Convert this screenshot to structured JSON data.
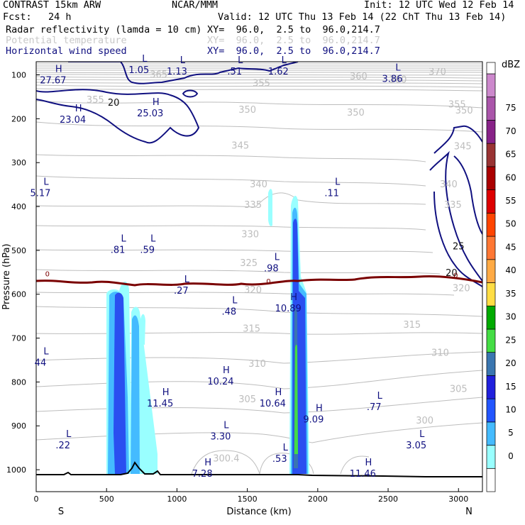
{
  "header": {
    "model": "CONTRAST 15km ARW",
    "center": "NCAR/MMM",
    "init": "Init: 12 UTC Wed 12 Feb 14",
    "fcst_label": "Fcst:",
    "fcst_value": "24 h",
    "valid": "Valid: 12 UTC Thu 13 Feb 14 (22 ChT Thu 13 Feb 14)",
    "fields": [
      {
        "name": "Radar reflectivity (lamda = 10 cm)",
        "xy": "XY=  96.0,  2.5 to  96.0,214.7"
      },
      {
        "name": "Potential temperature",
        "xy": "XY=  96.0,  2.5 to  96.0,214.7"
      },
      {
        "name": "Horizontal wind speed",
        "xy": "XY=  96.0,  2.5 to  96.0,214.7"
      }
    ]
  },
  "colors": {
    "reflectivity": [
      "#ffffff",
      "#99ffff",
      "#44bbff",
      "#2255ff",
      "#2020dd",
      "#3a76b0",
      "#44dd44",
      "#00aa00",
      "#ffdd44",
      "#ffaa44",
      "#ff7733",
      "#ff4400",
      "#dd0000",
      "#aa0000",
      "#993333",
      "#882288",
      "#aa55aa",
      "#cc88cc"
    ],
    "theta": "#bdbdbd",
    "wind": "#101080",
    "freezing": "#7a0000"
  },
  "chart_data": {
    "type": "contour",
    "xlabel": "Distance (km)",
    "ylabel": "Pressure (hPa)",
    "xlim": [
      0,
      3170
    ],
    "ylim": [
      1050,
      70
    ],
    "x_ticks": [
      "0",
      "500",
      "1000",
      "1500",
      "2000",
      "2500",
      "3000"
    ],
    "x_tick_values": [
      0,
      500,
      1000,
      1500,
      2000,
      2500,
      3000
    ],
    "y_ticks": [
      "100",
      "200",
      "300",
      "400",
      "500",
      "600",
      "700",
      "800",
      "900",
      "1000"
    ],
    "y_tick_values": [
      100,
      200,
      300,
      400,
      500,
      600,
      700,
      800,
      900,
      1000
    ],
    "x_end_labels": {
      "left": "S",
      "right": "N"
    },
    "colorbar": {
      "unit": "dBZ",
      "levels": [
        "0",
        "5",
        "10",
        "15",
        "20",
        "25",
        "30",
        "35",
        "40",
        "45",
        "50",
        "55",
        "60",
        "65",
        "70",
        "75"
      ]
    },
    "theta_labels": [
      {
        "text": "370",
        "x": 2850,
        "p": 92
      },
      {
        "text": "360",
        "x": 2290,
        "p": 102
      },
      {
        "text": "360",
        "x": 2570,
        "p": 110
      },
      {
        "text": "365",
        "x": 870,
        "p": 98
      },
      {
        "text": "355",
        "x": 1600,
        "p": 118
      },
      {
        "text": "355",
        "x": 420,
        "p": 156
      },
      {
        "text": "355",
        "x": 2990,
        "p": 166
      },
      {
        "text": "350",
        "x": 1500,
        "p": 178
      },
      {
        "text": "350",
        "x": 2270,
        "p": 185
      },
      {
        "text": "350",
        "x": 3040,
        "p": 180
      },
      {
        "text": "345",
        "x": 1450,
        "p": 260
      },
      {
        "text": "345",
        "x": 3030,
        "p": 262
      },
      {
        "text": "340",
        "x": 1580,
        "p": 348
      },
      {
        "text": "340",
        "x": 2930,
        "p": 348
      },
      {
        "text": "335",
        "x": 1540,
        "p": 395
      },
      {
        "text": "335",
        "x": 2960,
        "p": 395
      },
      {
        "text": "330",
        "x": 1520,
        "p": 462
      },
      {
        "text": "325",
        "x": 1510,
        "p": 528
      },
      {
        "text": "320",
        "x": 1540,
        "p": 589
      },
      {
        "text": "320",
        "x": 3020,
        "p": 585
      },
      {
        "text": "315",
        "x": 1530,
        "p": 677
      },
      {
        "text": "315",
        "x": 2670,
        "p": 668
      },
      {
        "text": "310",
        "x": 1570,
        "p": 757
      },
      {
        "text": "310",
        "x": 2870,
        "p": 732
      },
      {
        "text": "305",
        "x": 1500,
        "p": 838
      },
      {
        "text": "305",
        "x": 3000,
        "p": 815
      },
      {
        "text": "300",
        "x": 2760,
        "p": 887
      },
      {
        "text": "300.4",
        "x": 1350,
        "p": 973
      }
    ],
    "wind_labels": [
      {
        "text": "20",
        "x": 550,
        "p": 162
      },
      {
        "text": "25",
        "x": 3000,
        "p": 490
      },
      {
        "text": "20",
        "x": 2950,
        "p": 550
      }
    ],
    "freezing_labels": [
      {
        "text": "0",
        "x": 80,
        "p": 553
      },
      {
        "text": "0",
        "x": 1650,
        "p": 570
      },
      {
        "text": "0",
        "x": 2980,
        "p": 556
      }
    ],
    "extrema": [
      {
        "kind": "H",
        "value": "27.67",
        "x": 120,
        "p": 103
      },
      {
        "kind": "L",
        "value": "1.05",
        "x": 730,
        "p": 80
      },
      {
        "kind": "L",
        "value": "1.13",
        "x": 1000,
        "p": 83
      },
      {
        "kind": "L",
        "value": ".51",
        "x": 1410,
        "p": 83
      },
      {
        "kind": "L",
        "value": "1.62",
        "x": 1720,
        "p": 83
      },
      {
        "kind": "L",
        "value": "3.86",
        "x": 2530,
        "p": 100
      },
      {
        "kind": "H",
        "value": "25.03",
        "x": 810,
        "p": 178
      },
      {
        "kind": "H",
        "value": "23.04",
        "x": 260,
        "p": 193
      },
      {
        "kind": "L",
        "value": "5.17",
        "x": 30,
        "p": 360
      },
      {
        "kind": "L",
        "value": ".11",
        "x": 2100,
        "p": 360
      },
      {
        "kind": "L",
        "value": ".81",
        "x": 580,
        "p": 490
      },
      {
        "kind": "L",
        "value": ".59",
        "x": 790,
        "p": 490
      },
      {
        "kind": "L",
        "value": ".98",
        "x": 1670,
        "p": 532
      },
      {
        "kind": "L",
        "value": ".27",
        "x": 1030,
        "p": 583
      },
      {
        "kind": "L",
        "value": ".48",
        "x": 1370,
        "p": 630
      },
      {
        "kind": "H",
        "value": "10.89",
        "x": 1790,
        "p": 623
      },
      {
        "kind": "L",
        "value": "44",
        "x": 30,
        "p": 747
      },
      {
        "kind": "H",
        "value": "10.24",
        "x": 1310,
        "p": 790
      },
      {
        "kind": "H",
        "value": "11.45",
        "x": 880,
        "p": 840
      },
      {
        "kind": "H",
        "value": "10.64",
        "x": 1680,
        "p": 840
      },
      {
        "kind": "H",
        "value": "9.09",
        "x": 1970,
        "p": 876
      },
      {
        "kind": "L",
        "value": ".77",
        "x": 2400,
        "p": 848
      },
      {
        "kind": "L",
        "value": "3.30",
        "x": 1310,
        "p": 915
      },
      {
        "kind": "L",
        "value": ".22",
        "x": 190,
        "p": 935
      },
      {
        "kind": "L",
        "value": "3.05",
        "x": 2700,
        "p": 935
      },
      {
        "kind": "L",
        "value": ".53",
        "x": 1730,
        "p": 966
      },
      {
        "kind": "H",
        "value": "7.28",
        "x": 1180,
        "p": 1000
      },
      {
        "kind": "H",
        "value": "11.46",
        "x": 2320,
        "p": 1000
      }
    ]
  }
}
